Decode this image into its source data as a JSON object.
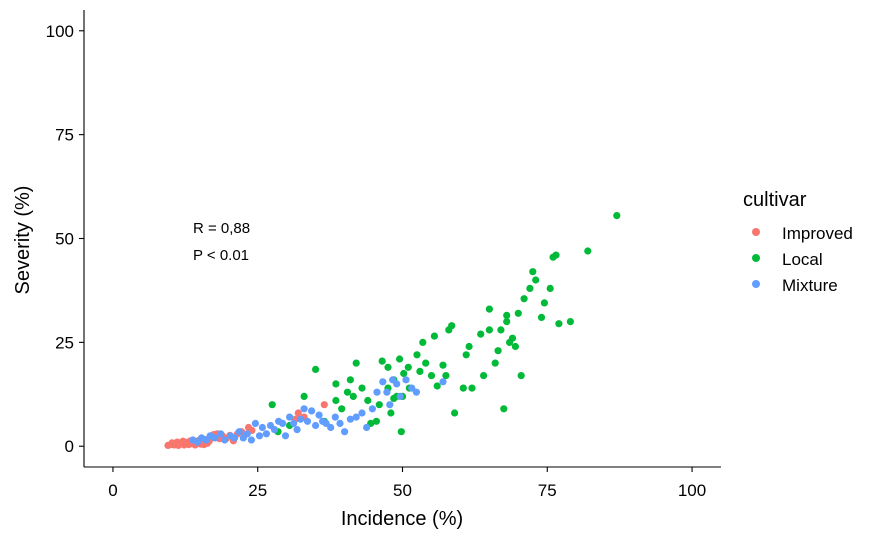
{
  "chart_data": {
    "type": "scatter",
    "xlabel": "Incidence (%)",
    "ylabel": "Severity (%)",
    "xlim": [
      -5,
      105
    ],
    "ylim": [
      -5,
      105
    ],
    "xticks": [
      0,
      25,
      50,
      75,
      100
    ],
    "yticks": [
      0,
      25,
      50,
      75,
      100
    ],
    "grid": false,
    "legend": {
      "title": "cultivar",
      "placement": "right"
    },
    "annotations": [
      "R = 0,88",
      "P < 0.01"
    ],
    "series": [
      {
        "name": "Improved",
        "color": "#F8766D",
        "points": [
          [
            9.5,
            0.2
          ],
          [
            10,
            0.4
          ],
          [
            10.2,
            0.8
          ],
          [
            10.6,
            0.3
          ],
          [
            10.9,
            0.6
          ],
          [
            11.1,
            1.0
          ],
          [
            11.3,
            0.2
          ],
          [
            11.6,
            0.5
          ],
          [
            11.9,
            0.9
          ],
          [
            12.1,
            1.2
          ],
          [
            12.3,
            0.3
          ],
          [
            12.6,
            0.7
          ],
          [
            12.9,
            1.0
          ],
          [
            13.1,
            0.4
          ],
          [
            13.4,
            1.3
          ],
          [
            13.7,
            0.6
          ],
          [
            14,
            1.1
          ],
          [
            14.2,
            0.3
          ],
          [
            14.5,
            0.8
          ],
          [
            14.8,
            1.4
          ],
          [
            15.1,
            0.5
          ],
          [
            15.4,
            1.0
          ],
          [
            15.7,
            0.4
          ],
          [
            16,
            1.6
          ],
          [
            16.3,
            0.7
          ],
          [
            16.6,
            1.2
          ],
          [
            17,
            2.0
          ],
          [
            17.4,
            2.8
          ],
          [
            18,
            3.0
          ],
          [
            18.4,
            1.8
          ],
          [
            18.9,
            2.5
          ],
          [
            19.6,
            1.9
          ],
          [
            20.2,
            2.6
          ],
          [
            20.8,
            1.3
          ],
          [
            21.5,
            3.0
          ],
          [
            22.2,
            3.5
          ],
          [
            22.8,
            2.8
          ],
          [
            23.4,
            4.5
          ],
          [
            24,
            3.8
          ],
          [
            31.5,
            6.5
          ],
          [
            32,
            8.0
          ],
          [
            33,
            7.0
          ],
          [
            36.5,
            10.0
          ]
        ]
      },
      {
        "name": "Local",
        "color": "#00BA38",
        "points": [
          [
            27.5,
            10
          ],
          [
            28.5,
            3.5
          ],
          [
            30.5,
            5
          ],
          [
            33,
            12
          ],
          [
            35,
            18.5
          ],
          [
            36.5,
            6
          ],
          [
            38.5,
            15
          ],
          [
            38.5,
            11
          ],
          [
            39.5,
            9
          ],
          [
            40.5,
            13
          ],
          [
            41,
            16
          ],
          [
            41.5,
            12
          ],
          [
            42,
            20
          ],
          [
            43,
            14
          ],
          [
            44,
            11
          ],
          [
            44.5,
            5.5
          ],
          [
            45.5,
            6
          ],
          [
            46,
            10
          ],
          [
            46.5,
            20.5
          ],
          [
            47.5,
            14
          ],
          [
            47.5,
            19
          ],
          [
            48,
            8
          ],
          [
            48.5,
            11.5
          ],
          [
            48.5,
            16
          ],
          [
            49,
            12
          ],
          [
            49.5,
            21
          ],
          [
            49.8,
            3.5
          ],
          [
            50,
            12
          ],
          [
            50.2,
            17.5
          ],
          [
            51,
            19
          ],
          [
            51.2,
            14
          ],
          [
            52.5,
            22
          ],
          [
            53,
            18
          ],
          [
            53.5,
            25
          ],
          [
            54,
            20
          ],
          [
            55,
            17
          ],
          [
            55.5,
            26.5
          ],
          [
            56,
            14.5
          ],
          [
            57,
            19.5
          ],
          [
            57.5,
            17
          ],
          [
            58,
            28
          ],
          [
            58.5,
            29
          ],
          [
            59,
            8
          ],
          [
            60.5,
            14
          ],
          [
            61,
            22
          ],
          [
            61.5,
            24
          ],
          [
            62,
            14
          ],
          [
            63.5,
            27
          ],
          [
            64,
            17
          ],
          [
            65,
            28
          ],
          [
            65,
            33
          ],
          [
            66,
            20
          ],
          [
            66.5,
            23
          ],
          [
            67,
            28
          ],
          [
            67.5,
            9
          ],
          [
            68,
            30
          ],
          [
            68,
            31.5
          ],
          [
            68.5,
            25
          ],
          [
            69,
            26
          ],
          [
            69.5,
            24
          ],
          [
            70,
            32
          ],
          [
            70.5,
            17
          ],
          [
            71,
            35.5
          ],
          [
            72,
            38
          ],
          [
            72.5,
            42
          ],
          [
            73,
            40
          ],
          [
            74,
            31
          ],
          [
            74.5,
            34.5
          ],
          [
            75.5,
            38
          ],
          [
            76,
            45.5
          ],
          [
            76.5,
            46
          ],
          [
            77,
            29.5
          ],
          [
            79,
            30
          ],
          [
            82,
            47
          ],
          [
            87,
            55.5
          ]
        ]
      },
      {
        "name": "Mixture",
        "color": "#619CFF",
        "points": [
          [
            13.8,
            1.5
          ],
          [
            14.6,
            1.0
          ],
          [
            15.3,
            2.0
          ],
          [
            16.1,
            1.5
          ],
          [
            16.8,
            2.5
          ],
          [
            17.6,
            2.0
          ],
          [
            18.6,
            3.0
          ],
          [
            19.3,
            1.5
          ],
          [
            20.3,
            2.5
          ],
          [
            21,
            2.0
          ],
          [
            21.8,
            3.5
          ],
          [
            22.5,
            2.0
          ],
          [
            23.2,
            3.0
          ],
          [
            23.9,
            1.5
          ],
          [
            24.6,
            5.5
          ],
          [
            25.3,
            2.5
          ],
          [
            25.8,
            4.5
          ],
          [
            26.5,
            3.0
          ],
          [
            27.2,
            5.0
          ],
          [
            27.9,
            4.0
          ],
          [
            28.6,
            6.0
          ],
          [
            29.3,
            5.5
          ],
          [
            29.8,
            2.5
          ],
          [
            30.5,
            7.0
          ],
          [
            31.2,
            5.5
          ],
          [
            31.8,
            4.0
          ],
          [
            32.4,
            6.5
          ],
          [
            33,
            9.0
          ],
          [
            33.6,
            6.0
          ],
          [
            34.3,
            8.5
          ],
          [
            35,
            5.0
          ],
          [
            35.6,
            7.5
          ],
          [
            36.2,
            6.0
          ],
          [
            36.8,
            5.5
          ],
          [
            37.6,
            4.5
          ],
          [
            38.4,
            7.0
          ],
          [
            39.2,
            5.5
          ],
          [
            40,
            3.5
          ],
          [
            41,
            6.5
          ],
          [
            42,
            7.0
          ],
          [
            43,
            8.0
          ],
          [
            43.8,
            4.5
          ],
          [
            44.8,
            9.0
          ],
          [
            45.6,
            13.0
          ],
          [
            46.6,
            15.5
          ],
          [
            47.3,
            13.0
          ],
          [
            47.8,
            10.0
          ],
          [
            48.3,
            16.0
          ],
          [
            49,
            15.0
          ],
          [
            49.6,
            12.0
          ],
          [
            50.6,
            16.0
          ],
          [
            51.6,
            14.0
          ],
          [
            52.4,
            13.0
          ],
          [
            57,
            15.5
          ]
        ]
      }
    ]
  }
}
